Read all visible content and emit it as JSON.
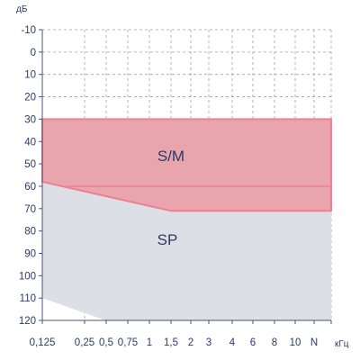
{
  "chart_data": {
    "type": "area",
    "ylabel": "дБ",
    "xlabel": "кГц",
    "y_reversed": true,
    "ylim": [
      -10,
      120
    ],
    "yticks": [
      -10,
      0,
      10,
      20,
      30,
      40,
      50,
      60,
      70,
      80,
      90,
      100,
      110,
      120
    ],
    "xtick_labels": [
      "0,125",
      "0,25",
      "0,5",
      "0,75",
      "1",
      "1,5",
      "2",
      "3",
      "4",
      "6",
      "8",
      "10",
      "N"
    ],
    "grid": true,
    "regions": [
      {
        "name": "SP",
        "color": "#dcdfe6",
        "outline": [
          [
            0,
            58
          ],
          [
            5,
            71
          ],
          [
            13,
            71
          ],
          [
            13,
            120
          ],
          [
            2,
            120
          ],
          [
            0,
            110
          ]
        ]
      },
      {
        "name": "S/M",
        "color": "#e8a5ae",
        "border_color": "#f07f92",
        "outline": [
          [
            0,
            30
          ],
          [
            13,
            30
          ],
          [
            13,
            71
          ],
          [
            5,
            71
          ],
          [
            0,
            58
          ]
        ],
        "inner_line": [
          [
            0.6,
            60
          ],
          [
            13,
            60
          ]
        ]
      }
    ],
    "colors": {
      "text": "#2b3a67",
      "grid": "#9aa1b0",
      "axis": "#4a5478"
    }
  }
}
